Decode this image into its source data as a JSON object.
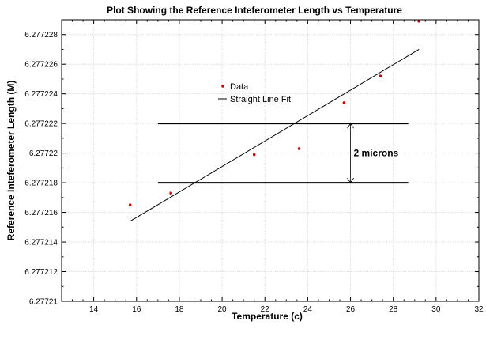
{
  "chart_data": {
    "type": "scatter",
    "title": "Plot Showing the Reference Inteferometer Length vs Temperature",
    "xlabel": "Temperature (c)",
    "ylabel": "Reference Inteferometer Length (M)",
    "xlim": [
      12.5,
      32
    ],
    "ylim": [
      6.27721,
      6.277229
    ],
    "x_ticks": [
      "14",
      "16",
      "18",
      "20",
      "22",
      "24",
      "26",
      "28",
      "30",
      "32"
    ],
    "x_tick_values": [
      14,
      16,
      18,
      20,
      22,
      24,
      26,
      28,
      30,
      32
    ],
    "y_ticks": [
      "6.27721",
      "6.277212",
      "6.277214",
      "6.277216",
      "6.277218",
      "6.27722",
      "6.277222",
      "6.277224",
      "6.277226",
      "6.277228"
    ],
    "y_tick_values": [
      6.27721,
      6.277212,
      6.277214,
      6.277216,
      6.277218,
      6.27722,
      6.277222,
      6.277224,
      6.277226,
      6.277228
    ],
    "grid": true,
    "legend_position": "upper-left-center",
    "series": [
      {
        "name": "Data",
        "kind": "scatter",
        "color": "#cc0000",
        "x": [
          15.7,
          17.6,
          21.5,
          23.6,
          25.7,
          27.4,
          29.2
        ],
        "y": [
          6.2772165,
          6.2772173,
          6.2772199,
          6.2772203,
          6.2772234,
          6.2772252,
          6.2772289
        ]
      },
      {
        "name": "Straight Line Fit",
        "kind": "line",
        "color": "#000000",
        "x": [
          15.7,
          29.2
        ],
        "y": [
          6.2772154,
          6.277227
        ]
      }
    ],
    "annotations": {
      "reference_lines": [
        {
          "y": 6.277222,
          "x_start": 17.0,
          "x_end": 28.7
        },
        {
          "y": 6.277218,
          "x_start": 17.0,
          "x_end": 28.7
        }
      ],
      "arrow": {
        "x": 26.0,
        "y_from": 6.277222,
        "y_to": 6.277218
      },
      "arrow_label": "2 microns"
    }
  }
}
